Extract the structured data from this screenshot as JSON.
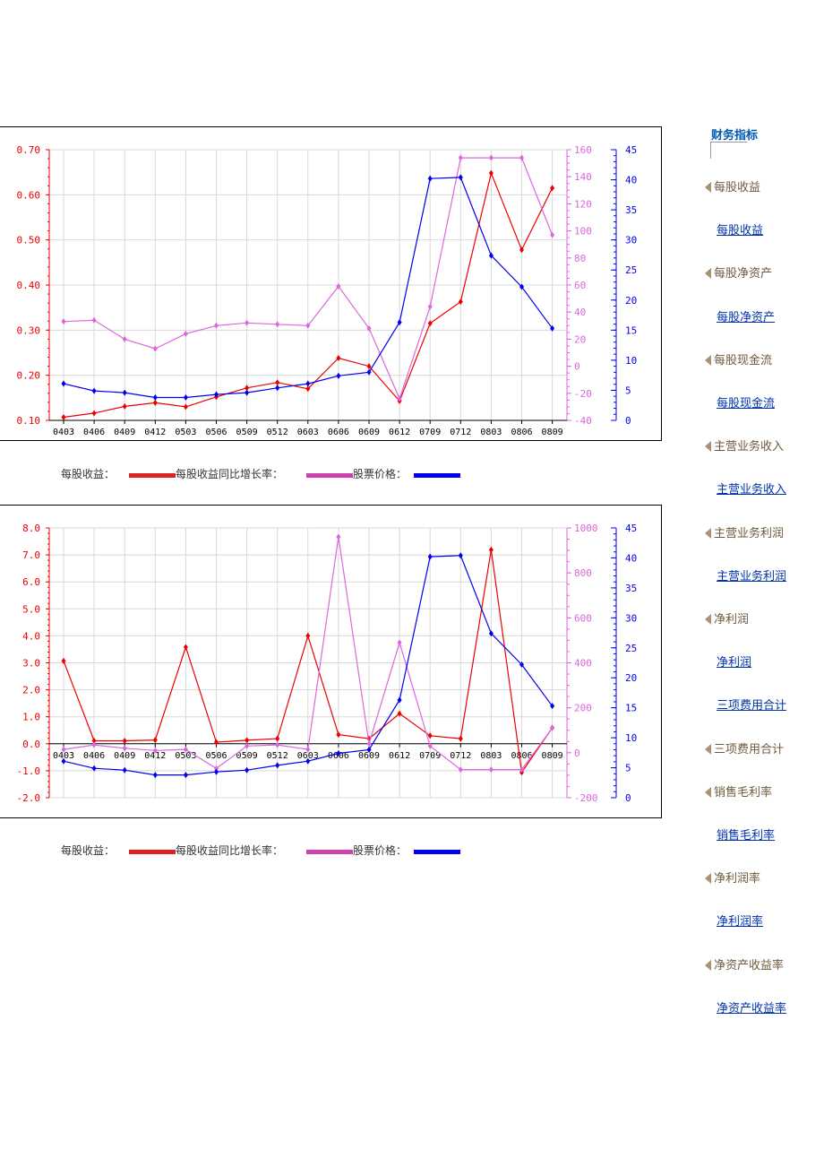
{
  "sidebar": {
    "title": "财务指标",
    "items": [
      {
        "type": "header",
        "label": "每股收益"
      },
      {
        "type": "link",
        "label": "每股收益"
      },
      {
        "type": "header",
        "label": "每股净资产"
      },
      {
        "type": "link",
        "label": "每股净资产"
      },
      {
        "type": "header",
        "label": "每股现金流"
      },
      {
        "type": "link",
        "label": "每股现金流"
      },
      {
        "type": "header",
        "label": "主营业务收入"
      },
      {
        "type": "link",
        "label": "主营业务收入"
      },
      {
        "type": "header",
        "label": "主营业务利润"
      },
      {
        "type": "link",
        "label": "主营业务利润"
      },
      {
        "type": "header",
        "label": "净利润"
      },
      {
        "type": "link",
        "label": "净利润"
      },
      {
        "type": "link",
        "label": "三项费用合计"
      },
      {
        "type": "header",
        "label": "三项费用合计"
      },
      {
        "type": "header",
        "label": "销售毛利率"
      },
      {
        "type": "link",
        "label": "销售毛利率"
      },
      {
        "type": "header",
        "label": "净利润率"
      },
      {
        "type": "link",
        "label": "净利润率"
      },
      {
        "type": "header",
        "label": "净资产收益率"
      },
      {
        "type": "link",
        "label": "净资产收益率"
      }
    ]
  },
  "legend": {
    "eps": "每股收益：",
    "eps_yoy": "每股收益同比增长率：",
    "price": "股票价格："
  },
  "colors": {
    "red": "#ee0000",
    "pink": "#dd66dd",
    "blue": "#0000ee",
    "legend_red": "#dd2222",
    "legend_pink": "#cc44aa",
    "legend_blue": "#0000ee",
    "grid": "#d8d8d8"
  },
  "chart_data": [
    {
      "type": "line",
      "categories": [
        "0403",
        "0406",
        "0409",
        "0412",
        "0503",
        "0506",
        "0509",
        "0512",
        "0603",
        "0606",
        "0609",
        "0612",
        "0709",
        "0712",
        "0803",
        "0806",
        "0809"
      ],
      "axes": {
        "left": {
          "ticks": [
            "0.10",
            "0.20",
            "0.30",
            "0.40",
            "0.50",
            "0.60",
            "0.70"
          ],
          "min": 0.1,
          "max": 0.7
        },
        "middle": {
          "ticks": [
            "-40",
            "-20",
            "0",
            "20",
            "40",
            "60",
            "80",
            "100",
            "120",
            "140",
            "160"
          ],
          "min": -40,
          "max": 160
        },
        "right": {
          "ticks": [
            "0",
            "5",
            "10",
            "15",
            "20",
            "25",
            "30",
            "35",
            "40",
            "45"
          ],
          "min": 0,
          "max": 45
        }
      },
      "series": [
        {
          "axis": "left",
          "color": "#ee0000",
          "values": [
            0.107,
            0.116,
            0.131,
            0.139,
            0.13,
            0.152,
            0.172,
            0.184,
            0.17,
            0.238,
            0.22,
            0.143,
            0.315,
            0.363,
            0.648,
            0.478,
            0.615
          ]
        },
        {
          "axis": "middle",
          "color": "#dd66dd",
          "values": [
            33,
            34,
            20,
            13,
            24,
            30,
            32,
            31,
            30,
            59,
            28,
            -24,
            44,
            154,
            154,
            154,
            97
          ]
        },
        {
          "axis": "right",
          "color": "#0000ee",
          "values": [
            6.1,
            4.9,
            4.6,
            3.8,
            3.8,
            4.3,
            4.6,
            5.4,
            6.1,
            7.4,
            8.0,
            16.3,
            40.2,
            40.4,
            27.4,
            22.2,
            15.3
          ]
        }
      ]
    },
    {
      "type": "line",
      "categories": [
        "0403",
        "0406",
        "0409",
        "0412",
        "0503",
        "0506",
        "0509",
        "0512",
        "0603",
        "0606",
        "0609",
        "0612",
        "0709",
        "0712",
        "0803",
        "0806",
        "0809"
      ],
      "axes": {
        "left": {
          "ticks": [
            "-2.0",
            "-1.0",
            "0.0",
            "1.0",
            "2.0",
            "3.0",
            "4.0",
            "5.0",
            "6.0",
            "7.0",
            "8.0"
          ],
          "min": -2,
          "max": 8
        },
        "middle": {
          "ticks": [
            "-200",
            "0",
            "200",
            "400",
            "600",
            "800",
            "1000"
          ],
          "min": -200,
          "max": 1000
        },
        "right": {
          "ticks": [
            "0",
            "5",
            "10",
            "15",
            "20",
            "25",
            "30",
            "35",
            "40",
            "45"
          ],
          "min": 0,
          "max": 45
        }
      },
      "series": [
        {
          "axis": "left",
          "color": "#ee0000",
          "values": [
            3.07,
            0.11,
            0.11,
            0.14,
            3.58,
            0.06,
            0.13,
            0.19,
            4.0,
            0.34,
            0.19,
            1.12,
            0.3,
            0.19,
            7.19,
            -1.06,
            0.59
          ]
        },
        {
          "axis": "middle",
          "color": "#dd66dd",
          "values": [
            15,
            35,
            20,
            10,
            15,
            -70,
            30,
            35,
            15,
            960,
            40,
            490,
            30,
            -75,
            -75,
            -75,
            110
          ]
        },
        {
          "axis": "right",
          "color": "#0000ee",
          "values": [
            6.1,
            4.9,
            4.6,
            3.8,
            3.8,
            4.3,
            4.6,
            5.4,
            6.1,
            7.4,
            8.0,
            16.3,
            40.2,
            40.4,
            27.4,
            22.2,
            15.3
          ]
        }
      ],
      "zero_line": 0
    }
  ]
}
